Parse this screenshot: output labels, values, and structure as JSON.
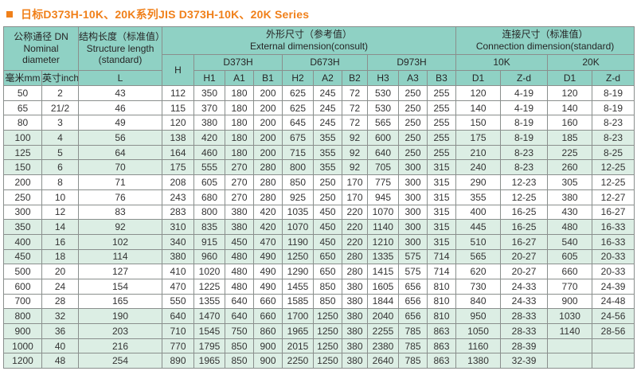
{
  "title": {
    "text": "日标D373H-10K、20K系列JIS D373H-10K、20K Series"
  },
  "colors": {
    "accent_orange": "#F0801A",
    "header_teal": "#8FD1C4",
    "row_mint": "#DCEEE4",
    "border_gray": "#8A8F8D",
    "text_dark": "#343434"
  },
  "table": {
    "header": {
      "nominal": {
        "zh": "公称通径 DN",
        "en1": "Nominal",
        "en2": "diameter"
      },
      "structure": {
        "zh": "结构长度（标准值）",
        "en1": "Structure length",
        "en2": "(standard)"
      },
      "external": {
        "zh": "外形尺寸（参考值）",
        "en": "External dimension(consult)"
      },
      "connection": {
        "zh": "连接尺寸（标准值）",
        "en": "Connection dimension(standard)"
      },
      "h": "H",
      "models": [
        "D373H",
        "D673H",
        "D973H"
      ],
      "pressures": [
        "10K",
        "20K"
      ],
      "sub": [
        "毫米mm",
        "英寸inch",
        "L",
        "H1",
        "A1",
        "B1",
        "H2",
        "A2",
        "B2",
        "H3",
        "A3",
        "B3",
        "D1",
        "Z-d",
        "D1",
        "Z-d"
      ]
    },
    "rows": [
      {
        "shaded": false,
        "cells": [
          "50",
          "2",
          "43",
          "112",
          "350",
          "180",
          "200",
          "625",
          "245",
          "72",
          "530",
          "250",
          "255",
          "120",
          "4-19",
          "120",
          "8-19"
        ]
      },
      {
        "shaded": false,
        "cells": [
          "65",
          "21/2",
          "46",
          "115",
          "370",
          "180",
          "200",
          "625",
          "245",
          "72",
          "530",
          "250",
          "255",
          "140",
          "4-19",
          "140",
          "8-19"
        ]
      },
      {
        "shaded": false,
        "cells": [
          "80",
          "3",
          "49",
          "120",
          "380",
          "180",
          "200",
          "645",
          "245",
          "72",
          "565",
          "250",
          "255",
          "150",
          "8-19",
          "160",
          "8-23"
        ]
      },
      {
        "shaded": true,
        "cells": [
          "100",
          "4",
          "56",
          "138",
          "420",
          "180",
          "200",
          "675",
          "355",
          "92",
          "600",
          "250",
          "255",
          "175",
          "8-19",
          "185",
          "8-23"
        ]
      },
      {
        "shaded": true,
        "cells": [
          "125",
          "5",
          "64",
          "164",
          "460",
          "180",
          "200",
          "715",
          "355",
          "92",
          "640",
          "250",
          "255",
          "210",
          "8-23",
          "225",
          "8-25"
        ]
      },
      {
        "shaded": true,
        "cells": [
          "150",
          "6",
          "70",
          "175",
          "555",
          "270",
          "280",
          "800",
          "355",
          "92",
          "705",
          "300",
          "315",
          "240",
          "8-23",
          "260",
          "12-25"
        ]
      },
      {
        "shaded": false,
        "cells": [
          "200",
          "8",
          "71",
          "208",
          "605",
          "270",
          "280",
          "850",
          "250",
          "170",
          "775",
          "300",
          "315",
          "290",
          "12-23",
          "305",
          "12-25"
        ]
      },
      {
        "shaded": false,
        "cells": [
          "250",
          "10",
          "76",
          "243",
          "680",
          "270",
          "280",
          "925",
          "250",
          "170",
          "945",
          "300",
          "315",
          "355",
          "12-25",
          "380",
          "12-27"
        ]
      },
      {
        "shaded": false,
        "cells": [
          "300",
          "12",
          "83",
          "283",
          "800",
          "380",
          "420",
          "1035",
          "450",
          "220",
          "1070",
          "300",
          "315",
          "400",
          "16-25",
          "430",
          "16-27"
        ]
      },
      {
        "shaded": true,
        "cells": [
          "350",
          "14",
          "92",
          "310",
          "835",
          "380",
          "420",
          "1070",
          "450",
          "220",
          "1140",
          "300",
          "315",
          "445",
          "16-25",
          "480",
          "16-33"
        ]
      },
      {
        "shaded": true,
        "cells": [
          "400",
          "16",
          "102",
          "340",
          "915",
          "450",
          "470",
          "1190",
          "450",
          "220",
          "1210",
          "300",
          "315",
          "510",
          "16-27",
          "540",
          "16-33"
        ]
      },
      {
        "shaded": true,
        "cells": [
          "450",
          "18",
          "114",
          "380",
          "960",
          "480",
          "490",
          "1250",
          "650",
          "280",
          "1335",
          "575",
          "714",
          "565",
          "20-27",
          "605",
          "20-33"
        ]
      },
      {
        "shaded": false,
        "cells": [
          "500",
          "20",
          "127",
          "410",
          "1020",
          "480",
          "490",
          "1290",
          "650",
          "280",
          "1415",
          "575",
          "714",
          "620",
          "20-27",
          "660",
          "20-33"
        ]
      },
      {
        "shaded": false,
        "cells": [
          "600",
          "24",
          "154",
          "470",
          "1225",
          "480",
          "490",
          "1455",
          "850",
          "380",
          "1605",
          "656",
          "810",
          "730",
          "24-33",
          "770",
          "24-39"
        ]
      },
      {
        "shaded": false,
        "cells": [
          "700",
          "28",
          "165",
          "550",
          "1355",
          "640",
          "660",
          "1585",
          "850",
          "380",
          "1844",
          "656",
          "810",
          "840",
          "24-33",
          "900",
          "24-48"
        ]
      },
      {
        "shaded": true,
        "cells": [
          "800",
          "32",
          "190",
          "640",
          "1470",
          "640",
          "660",
          "1700",
          "1250",
          "380",
          "2040",
          "656",
          "810",
          "950",
          "28-33",
          "1030",
          "24-56"
        ]
      },
      {
        "shaded": true,
        "cells": [
          "900",
          "36",
          "203",
          "710",
          "1545",
          "750",
          "860",
          "1965",
          "1250",
          "380",
          "2255",
          "785",
          "863",
          "1050",
          "28-33",
          "1140",
          "28-56"
        ]
      },
      {
        "shaded": true,
        "cells": [
          "1000",
          "40",
          "216",
          "770",
          "1795",
          "850",
          "900",
          "2015",
          "1250",
          "380",
          "2380",
          "785",
          "863",
          "1160",
          "28-39",
          "",
          ""
        ]
      },
      {
        "shaded": true,
        "cells": [
          "1200",
          "48",
          "254",
          "890",
          "1965",
          "850",
          "900",
          "2250",
          "1250",
          "380",
          "2640",
          "785",
          "863",
          "1380",
          "32-39",
          "",
          ""
        ]
      }
    ]
  }
}
